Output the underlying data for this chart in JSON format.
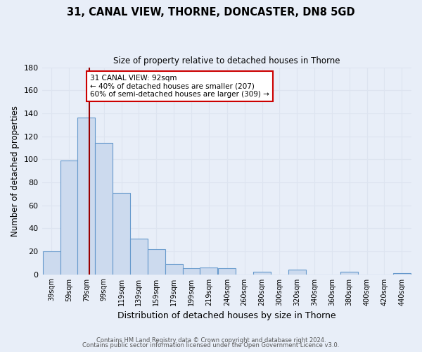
{
  "title": "31, CANAL VIEW, THORNE, DONCASTER, DN8 5GD",
  "subtitle": "Size of property relative to detached houses in Thorne",
  "xlabel": "Distribution of detached houses by size in Thorne",
  "ylabel": "Number of detached properties",
  "bar_color": "#ccdaee",
  "bar_edge_color": "#6699cc",
  "bg_color": "#e8eef8",
  "grid_color": "#d0d8e8",
  "categories": [
    "39sqm",
    "59sqm",
    "79sqm",
    "99sqm",
    "119sqm",
    "139sqm",
    "159sqm",
    "179sqm",
    "199sqm",
    "219sqm",
    "240sqm",
    "260sqm",
    "280sqm",
    "300sqm",
    "320sqm",
    "340sqm",
    "360sqm",
    "380sqm",
    "400sqm",
    "420sqm",
    "440sqm"
  ],
  "values": [
    20,
    99,
    136,
    114,
    71,
    31,
    22,
    9,
    5,
    6,
    5,
    0,
    2,
    0,
    4,
    0,
    0,
    2,
    0,
    0,
    1
  ],
  "ylim": [
    0,
    180
  ],
  "yticks": [
    0,
    20,
    40,
    60,
    80,
    100,
    120,
    140,
    160,
    180
  ],
  "vline_x": 92,
  "vline_color": "#990000",
  "annotation_text": "31 CANAL VIEW: 92sqm\n← 40% of detached houses are smaller (207)\n60% of semi-detached houses are larger (309) →",
  "annotation_box_color": "#ffffff",
  "annotation_box_edge": "#cc0000",
  "footer1": "Contains HM Land Registry data © Crown copyright and database right 2024.",
  "footer2": "Contains public sector information licensed under the Open Government Licence v3.0.",
  "bin_starts": [
    39,
    59,
    79,
    99,
    119,
    139,
    159,
    179,
    199,
    219,
    240,
    260,
    280,
    300,
    320,
    340,
    360,
    380,
    400,
    420,
    440
  ],
  "bin_width": 20
}
